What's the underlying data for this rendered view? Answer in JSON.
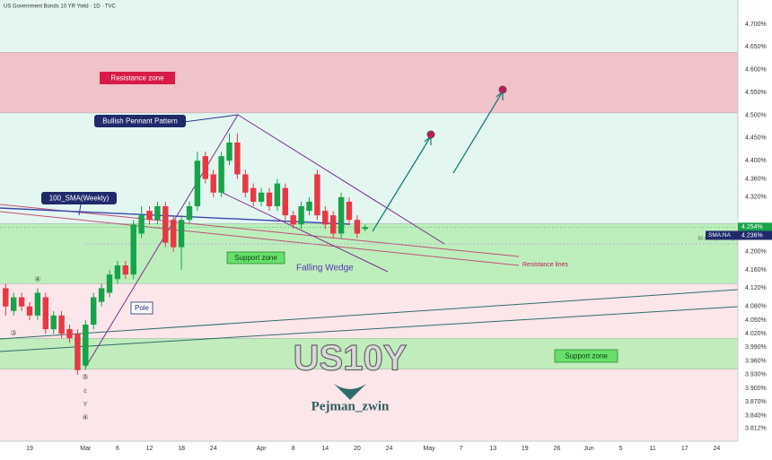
{
  "chart_data": {
    "type": "candlestick",
    "title": "US Government Bonds 10 YR Yield · 1D · TVC",
    "ylim": [
      3.784,
      4.753
    ],
    "yticks": [
      {
        "value": 4.7,
        "label": "4.700%"
      },
      {
        "value": 4.65,
        "label": "4.650%"
      },
      {
        "value": 4.6,
        "label": "4.600%"
      },
      {
        "value": 4.55,
        "label": "4.550%"
      },
      {
        "value": 4.5,
        "label": "4.500%"
      },
      {
        "value": 4.45,
        "label": "4.450%"
      },
      {
        "value": 4.4,
        "label": "4.400%"
      },
      {
        "value": 4.36,
        "label": "4.360%"
      },
      {
        "value": 4.32,
        "label": "4.320%"
      },
      {
        "value": 4.2,
        "label": "4.200%"
      },
      {
        "value": 4.16,
        "label": "4.160%"
      },
      {
        "value": 4.12,
        "label": "4.120%"
      },
      {
        "value": 4.08,
        "label": "4.080%"
      },
      {
        "value": 4.05,
        "label": "4.050%"
      },
      {
        "value": 4.02,
        "label": "4.020%"
      },
      {
        "value": 3.99,
        "label": "3.990%"
      },
      {
        "value": 3.96,
        "label": "3.960%"
      },
      {
        "value": 3.93,
        "label": "3.930%"
      },
      {
        "value": 3.9,
        "label": "3.900%"
      },
      {
        "value": 3.87,
        "label": "3.870%"
      },
      {
        "value": 3.84,
        "label": "3.840%"
      },
      {
        "value": 3.812,
        "label": "3.812%"
      }
    ],
    "categories": [
      null,
      null,
      null,
      "19",
      null,
      null,
      null,
      null,
      null,
      null,
      "Mar",
      null,
      null,
      null,
      "6",
      null,
      null,
      null,
      "12",
      null,
      null,
      null,
      "18",
      null,
      null,
      null,
      "24",
      null,
      null,
      null,
      null,
      null,
      "Apr",
      null,
      null,
      null,
      "8",
      null,
      null,
      null,
      "14",
      null,
      null,
      null,
      "20",
      null,
      null,
      null,
      "24",
      null,
      null,
      null,
      null,
      "May",
      null,
      null,
      null,
      "7",
      null,
      null,
      null,
      "13",
      null,
      null,
      null,
      "19",
      null,
      null,
      null,
      "26",
      null,
      null,
      null,
      "Jun",
      null,
      null,
      null,
      "5",
      null,
      null,
      null,
      "11",
      null,
      null,
      null,
      "17",
      null,
      null,
      null,
      "24",
      null,
      null
    ],
    "open": [
      4.12,
      4.07,
      4.1,
      4.08,
      4.06,
      4.1,
      4.03,
      4.06,
      4.03,
      4.02,
      3.95,
      4.04,
      4.09,
      4.11,
      4.14,
      4.17,
      4.15,
      4.24,
      4.29,
      4.27,
      4.3,
      4.27,
      4.21,
      4.27,
      4.3,
      4.41,
      4.37,
      4.33,
      4.4,
      4.44,
      4.37,
      4.34,
      4.31,
      4.33,
      4.3,
      4.34,
      4.28,
      4.26,
      4.29,
      4.37,
      4.29,
      4.28,
      4.24,
      4.31,
      4.27,
      4.25,
      null,
      null,
      null,
      null,
      null,
      null,
      null,
      null,
      null,
      null,
      null,
      null,
      null,
      null,
      null,
      null,
      null,
      null,
      null,
      null,
      null,
      null,
      null,
      null,
      null,
      null,
      null,
      null,
      null,
      null,
      null,
      null,
      null,
      null,
      null,
      null,
      null,
      null,
      null,
      null,
      null,
      null,
      null,
      null,
      null,
      null
    ],
    "high": [
      4.13,
      4.11,
      4.11,
      4.09,
      4.12,
      4.11,
      4.07,
      4.07,
      4.04,
      4.03,
      4.05,
      4.11,
      4.13,
      4.16,
      4.18,
      4.18,
      4.27,
      4.3,
      4.3,
      4.31,
      4.31,
      4.28,
      4.28,
      4.31,
      4.42,
      4.42,
      4.38,
      4.42,
      4.46,
      4.46,
      4.38,
      4.35,
      4.34,
      4.34,
      4.36,
      4.35,
      4.29,
      4.31,
      4.32,
      4.38,
      4.3,
      4.29,
      4.33,
      4.32,
      4.28,
      4.26,
      null,
      null,
      null,
      null,
      null,
      null,
      null,
      null,
      null,
      null,
      null,
      null,
      null,
      null,
      null,
      null,
      null,
      null,
      null,
      null,
      null,
      null,
      null,
      null,
      null,
      null,
      null,
      null,
      null,
      null,
      null,
      null,
      null,
      null,
      null,
      null,
      null,
      null,
      null,
      null,
      null,
      null,
      null,
      null,
      null,
      null
    ],
    "low": [
      4.06,
      4.06,
      4.07,
      4.05,
      4.05,
      4.02,
      4.02,
      4.01,
      4.0,
      3.93,
      3.94,
      4.03,
      4.08,
      4.1,
      4.13,
      4.14,
      4.14,
      4.23,
      4.26,
      4.26,
      4.21,
      4.2,
      4.16,
      4.26,
      4.29,
      4.35,
      4.32,
      4.32,
      4.39,
      4.36,
      4.32,
      4.3,
      4.3,
      4.29,
      4.29,
      4.27,
      4.25,
      4.25,
      4.28,
      4.27,
      4.25,
      4.23,
      4.23,
      4.26,
      4.23,
      4.245,
      null,
      null,
      null,
      null,
      null,
      null,
      null,
      null,
      null,
      null,
      null,
      null,
      null,
      null,
      null,
      null,
      null,
      null,
      null,
      null,
      null,
      null,
      null,
      null,
      null,
      null,
      null,
      null,
      null,
      null,
      null,
      null,
      null,
      null,
      null,
      null,
      null,
      null,
      null,
      null,
      null,
      null,
      null,
      null,
      null,
      null
    ],
    "close": [
      4.08,
      4.1,
      4.08,
      4.06,
      4.11,
      4.03,
      4.06,
      4.02,
      4.01,
      3.94,
      4.04,
      4.1,
      4.12,
      4.15,
      4.17,
      4.15,
      4.26,
      4.28,
      4.27,
      4.3,
      4.22,
      4.21,
      4.27,
      4.3,
      4.4,
      4.36,
      4.33,
      4.41,
      4.44,
      4.37,
      4.33,
      4.31,
      4.33,
      4.3,
      4.35,
      4.28,
      4.26,
      4.3,
      4.31,
      4.28,
      4.26,
      4.24,
      4.32,
      4.27,
      4.24,
      4.254,
      null,
      null,
      null,
      null,
      null,
      null,
      null,
      null,
      null,
      null,
      null,
      null,
      null,
      null,
      null,
      null,
      null,
      null,
      null,
      null,
      null,
      null,
      null,
      null,
      null,
      null,
      null,
      null,
      null,
      null,
      null,
      null,
      null,
      null,
      null,
      null,
      null,
      null,
      null,
      null,
      null,
      null,
      null,
      null,
      null,
      null
    ],
    "up_color": "#16a34a",
    "down_color": "#e53945",
    "zones": [
      {
        "label": "Resistance zone",
        "range": [
          4.505,
          4.638
        ],
        "color": "#f3b9bf"
      },
      {
        "label": "Support zone",
        "range": [
          4.13,
          4.262
        ],
        "color": "#b6edb4"
      },
      {
        "label": "Support zone",
        "range": [
          3.942,
          4.01
        ],
        "color": "#b6edb4"
      }
    ],
    "price_tag": {
      "value": 4.254,
      "label": "4.254%"
    },
    "sma_tag": {
      "name": "SMA:NA",
      "value": 4.236,
      "label": "4.236%"
    },
    "fib_label": "50.00% (4.1965)",
    "annotations": [
      "Bullish Pennant Pattern",
      "100_SMA(Weekly)",
      "Falling Wedge",
      "Resistance lines",
      "Pole"
    ],
    "waves": [
      "③",
      "④",
      "⑤",
      "c",
      "Y",
      "④"
    ],
    "watermark": [
      "US10Y",
      "Pejman_zwin"
    ]
  }
}
